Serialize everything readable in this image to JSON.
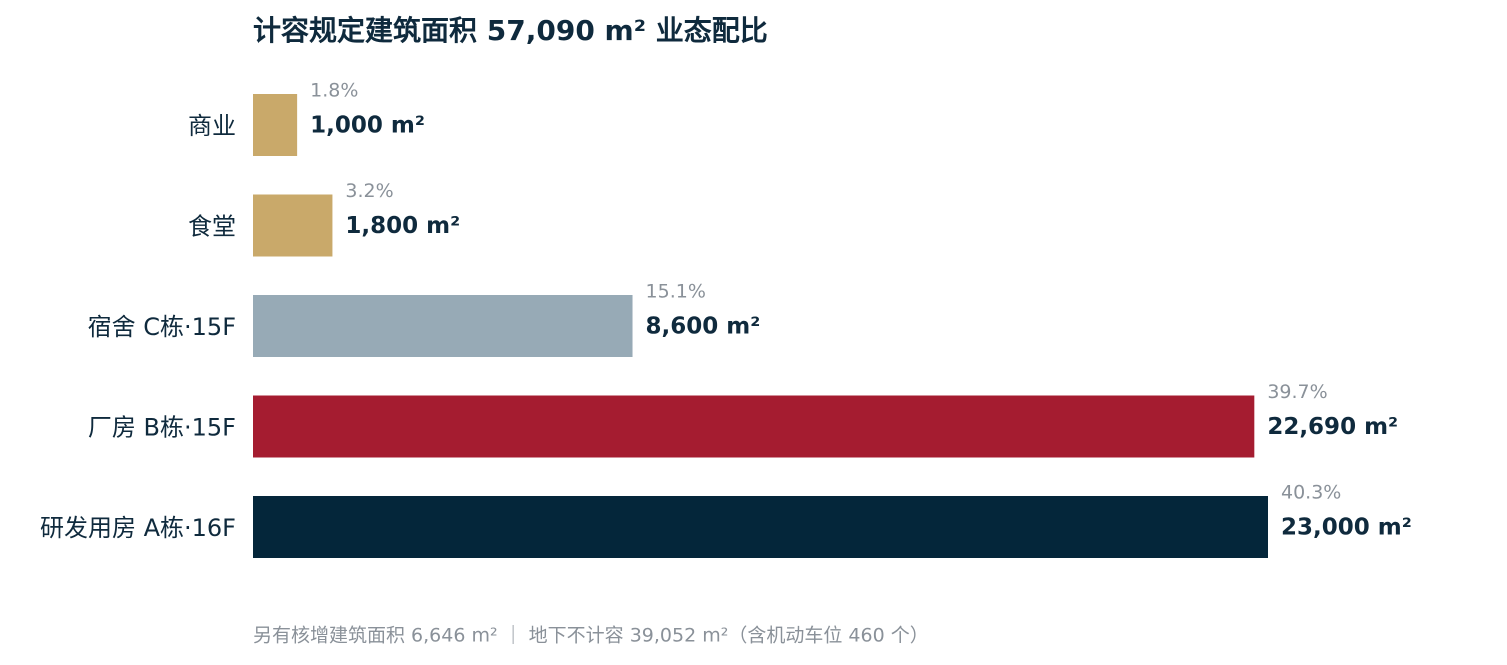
{
  "chart_data": {
    "type": "bar",
    "orientation": "horizontal",
    "title": "计容规定建筑面积 57,090 m² 业态配比",
    "categories": [
      "商业",
      "食堂",
      "宿舍 C栋·15F",
      "厂房 B栋·15F",
      "研发用房 A栋·16F"
    ],
    "values": [
      1000,
      1800,
      8600,
      22690,
      23000
    ],
    "value_labels": [
      "1,000 m²",
      "1,800 m²",
      "8,600 m²",
      "22,690 m²",
      "23,000 m²"
    ],
    "share_labels": [
      "1.8%",
      "3.2%",
      "15.1%",
      "39.7%",
      "40.3%"
    ],
    "colors": [
      "#c9a96a",
      "#c9a96a",
      "#97aab6",
      "#a51c30",
      "#04263a"
    ],
    "xlim": [
      0,
      23000
    ],
    "footnote": "另有核增建筑面积 6,646 m²  ｜  地下不计容 39,052 m²（含机动车位 460 个）"
  }
}
